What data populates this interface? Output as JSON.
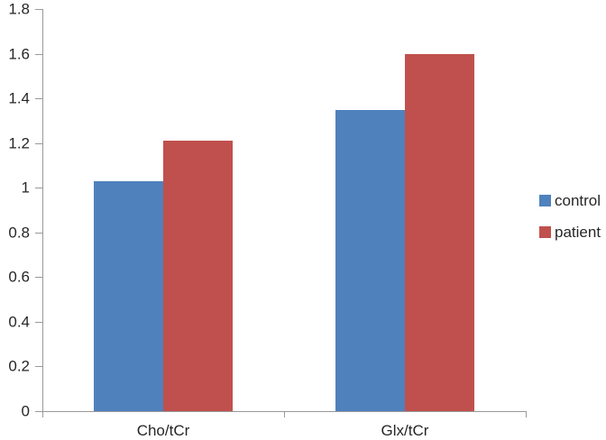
{
  "chart_data": {
    "type": "bar",
    "title": "",
    "xlabel": "",
    "ylabel": "",
    "categories": [
      "Cho/tCr",
      "Glx/tCr"
    ],
    "series": [
      {
        "name": "control",
        "color": "#4F81BD",
        "values": [
          1.03,
          1.35
        ]
      },
      {
        "name": "patient",
        "color": "#C0504D",
        "values": [
          1.21,
          1.6
        ]
      }
    ],
    "ylim": [
      0,
      1.8
    ],
    "ytick_step": 0.2,
    "ytick_labels": [
      "0",
      "0.2",
      "0.4",
      "0.6",
      "0.8",
      "1",
      "1.2",
      "1.4",
      "1.6",
      "1.8"
    ],
    "grid": false,
    "legend_position": "right",
    "axis_color": "#999999",
    "text_color": "#262626",
    "background_color": "#ffffff"
  }
}
